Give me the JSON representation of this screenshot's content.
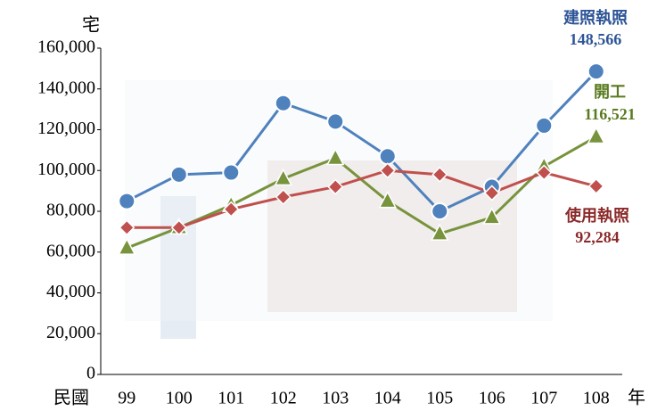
{
  "chart_data": {
    "type": "line",
    "y_unit": "宅",
    "x_prefix": "民國",
    "x_suffix": "年",
    "categories": [
      "99",
      "100",
      "101",
      "102",
      "103",
      "104",
      "105",
      "106",
      "107",
      "108"
    ],
    "ylim": [
      0,
      160000
    ],
    "yticks": [
      0,
      {
        "value": 20000,
        "label": "20,000"
      },
      {
        "value": 40000,
        "label": "40,000"
      },
      {
        "value": 60000,
        "label": "60,000"
      },
      {
        "value": 80000,
        "label": "80,000"
      },
      {
        "value": 100000,
        "label": "100,000"
      },
      {
        "value": 120000,
        "label": "120,000"
      },
      {
        "value": 140000,
        "label": "140,000"
      },
      {
        "value": 160000,
        "label": "160,000"
      }
    ],
    "series": [
      {
        "name": "建照執照",
        "color": "#4f81bd",
        "label_color": "#2e5597",
        "marker": "circle",
        "values": [
          85000,
          98000,
          99000,
          133000,
          124000,
          107000,
          80000,
          92000,
          122000,
          148566
        ],
        "value_labels": [
          null,
          null,
          null,
          null,
          null,
          null,
          null,
          null,
          null,
          "148,566"
        ]
      },
      {
        "name": "開工",
        "color": "#77933c",
        "label_color": "#5a7a1f",
        "marker": "triangle",
        "values": [
          62000,
          72000,
          83000,
          96000,
          106000,
          85000,
          69000,
          77000,
          102000,
          116521
        ],
        "value_labels": [
          null,
          null,
          null,
          null,
          null,
          null,
          null,
          null,
          null,
          "116,521"
        ]
      },
      {
        "name": "使用執照",
        "color": "#c0504d",
        "label_color": "#8b2a2a",
        "marker": "diamond",
        "values": [
          72000,
          72000,
          81000,
          87000,
          92000,
          100000,
          98000,
          89000,
          99000,
          92284
        ],
        "value_labels": [
          null,
          null,
          null,
          null,
          null,
          null,
          null,
          null,
          null,
          "92,284"
        ]
      }
    ]
  }
}
